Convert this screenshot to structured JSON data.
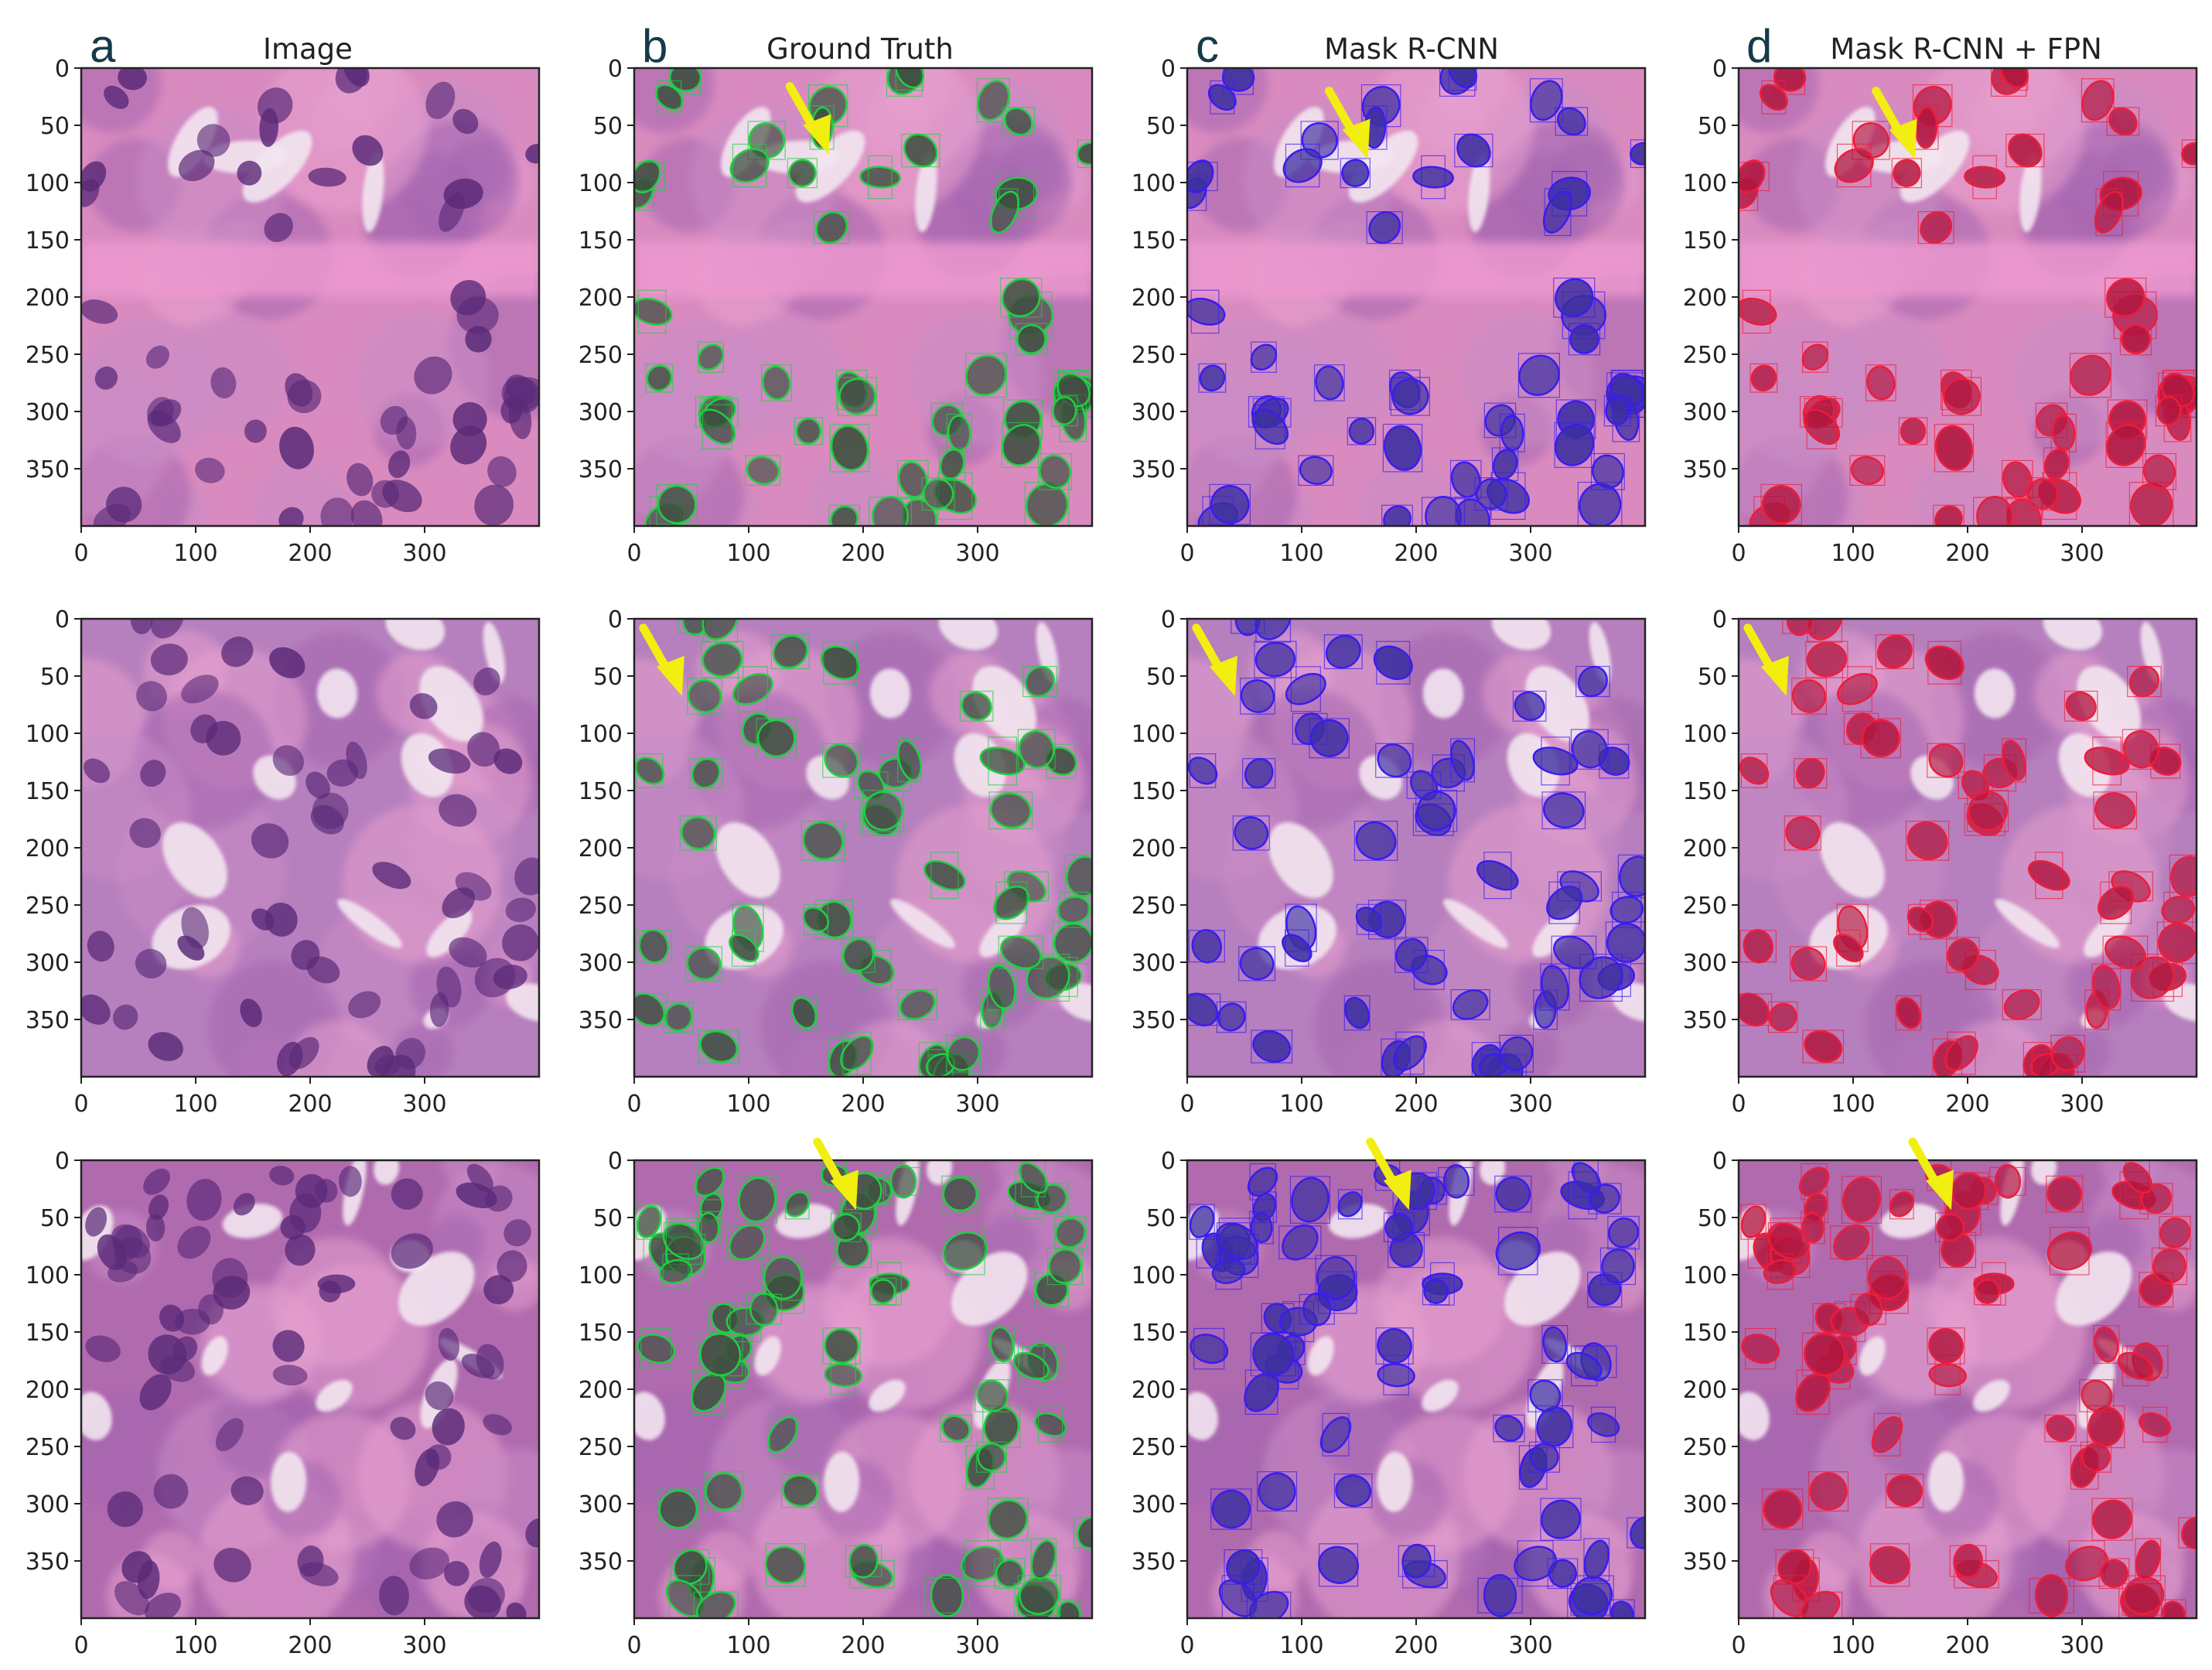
{
  "figure": {
    "panel_letters": [
      "a",
      "b",
      "c",
      "d"
    ],
    "column_titles": [
      "Image",
      "Ground Truth",
      "Mask R-CNN",
      "Mask R-CNN + FPN"
    ],
    "rows": 3,
    "x_ticks": [
      "0",
      "100",
      "200",
      "300"
    ],
    "y_ticks": [
      "0",
      "50",
      "100",
      "150",
      "200",
      "250",
      "300",
      "350"
    ],
    "overlay_colors": {
      "image": null,
      "ground_truth": "#1fd040",
      "mask_rcnn": "#3a1cf0",
      "mask_rcnn_fpn": "#ee1c3a"
    },
    "tissue_colors": {
      "stroma": "#d77bb6",
      "cytoplasm": "#b98ac4",
      "nucleus": "#5a2a78",
      "background": "#f3e6f0"
    },
    "arrow_color": "#f2ee10",
    "arrow_icon": "yellow-arrow-icon"
  }
}
